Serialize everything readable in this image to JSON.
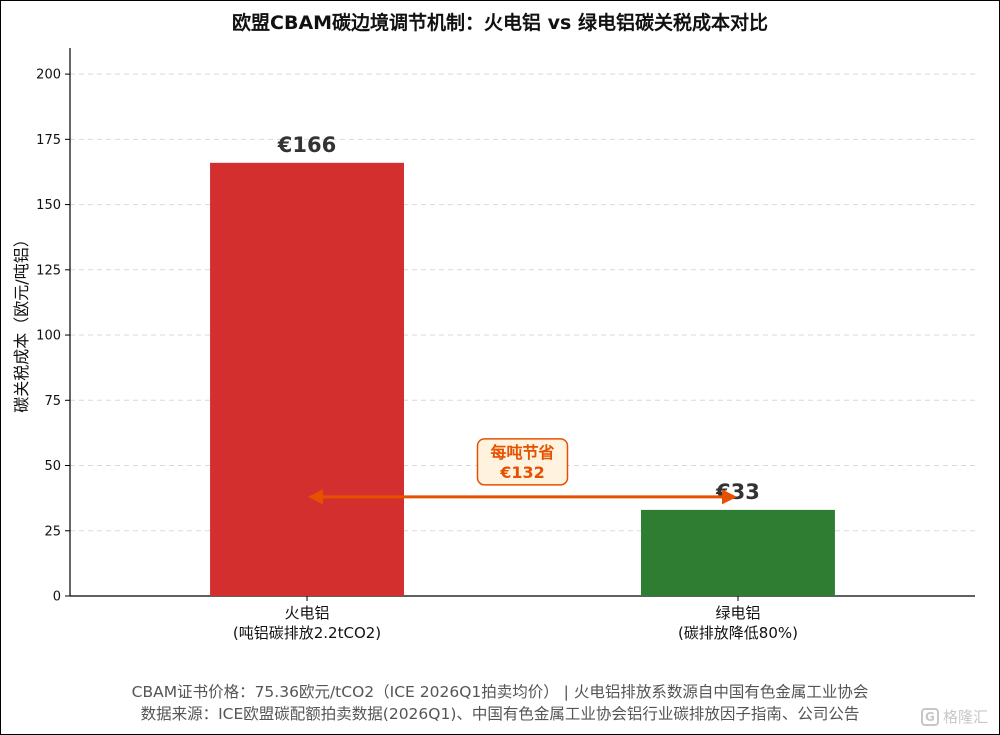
{
  "chart_data": {
    "type": "bar",
    "title": "欧盟CBAM碳边境调节机制：火电铝 vs 绿电铝碳关税成本对比",
    "ylabel": "碳关税成本（欧元/吨铝）",
    "xlabel": "",
    "ylim": [
      0,
      210
    ],
    "yticks": [
      0,
      25,
      50,
      75,
      100,
      125,
      150,
      175,
      200
    ],
    "grid": true,
    "categories": [
      {
        "line1": "火电铝",
        "line2": "(吨铝碳排放2.2tCO2)"
      },
      {
        "line1": "绿电铝",
        "line2": "(碳排放降低80%)"
      }
    ],
    "values": [
      166,
      33
    ],
    "value_labels": [
      "€166",
      "€33"
    ],
    "colors": [
      "#d32f2f",
      "#2e7d32"
    ],
    "annotation": {
      "line1": "每吨节省",
      "line2": "€132",
      "value": 132,
      "arrow_y": 38,
      "color": "#e65100",
      "box_fill": "#fff3e0"
    }
  },
  "footer": {
    "line1": "CBAM证书价格：75.36欧元/tCO2（ICE 2026Q1拍卖均价） | 火电铝排放系数源自中国有色金属工业协会",
    "line2": "数据来源：ICE欧盟碳配额拍卖数据(2026Q1)、中国有色金属工业协会铝行业碳排放因子指南、公司公告"
  },
  "watermark": {
    "logo": "G",
    "text": "格隆汇"
  }
}
